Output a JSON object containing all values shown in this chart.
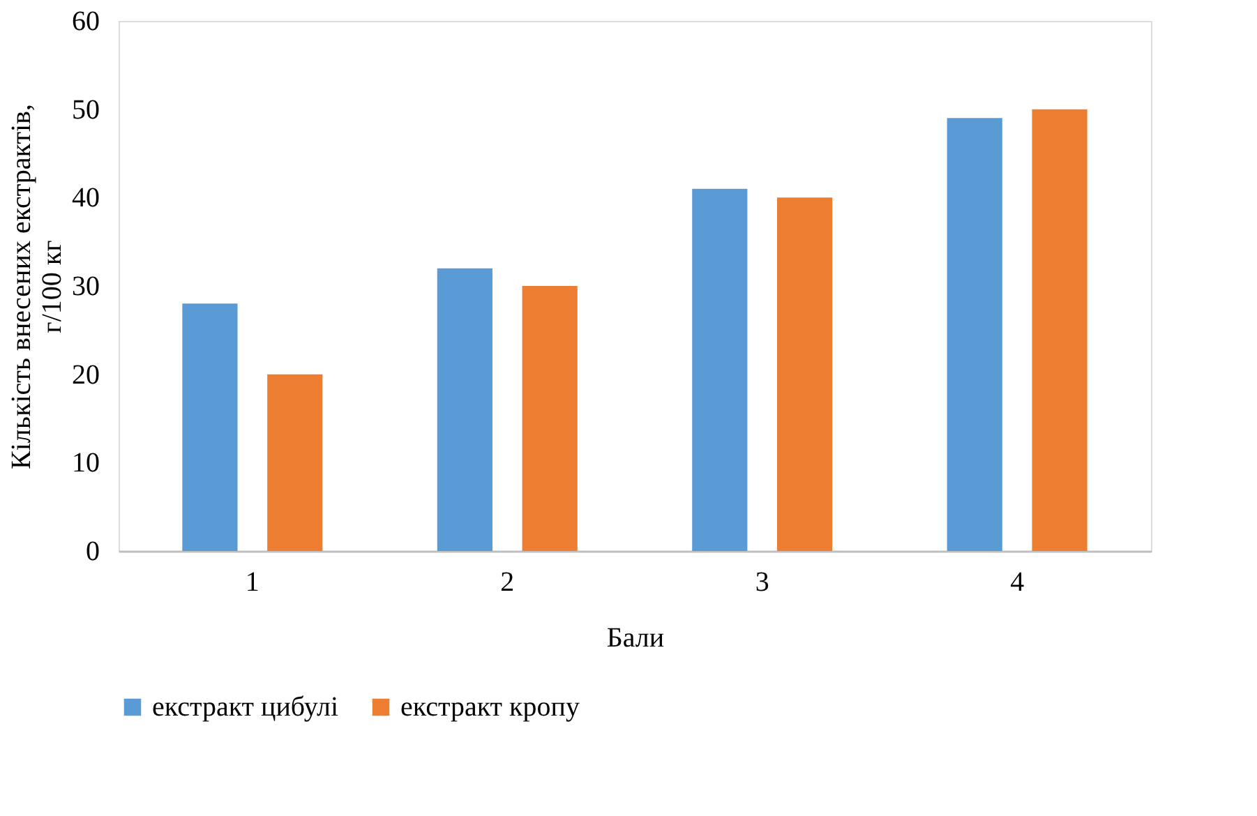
{
  "chart_data": {
    "type": "bar",
    "xlabel": "Бали",
    "ylabel": "Кількість внесених екстрактів, г/100 кг",
    "categories": [
      "1",
      "2",
      "3",
      "4"
    ],
    "series": [
      {
        "name": "екстракт цибулі",
        "color": "#5b9bd5",
        "values": [
          28,
          32,
          41,
          49
        ]
      },
      {
        "name": "екстракт кропу",
        "color": "#ed7d31",
        "values": [
          20,
          30,
          40,
          50
        ]
      }
    ],
    "ylim": [
      0,
      60
    ],
    "yticks": [
      0,
      10,
      20,
      30,
      40,
      50,
      60
    ],
    "grid": false,
    "legend": "bottom"
  }
}
